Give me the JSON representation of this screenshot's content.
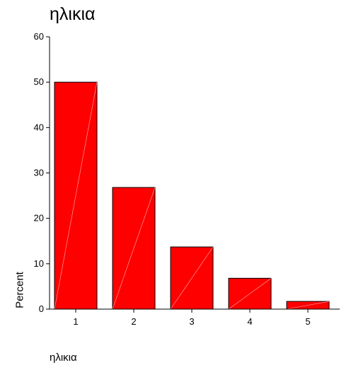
{
  "chart_data": {
    "type": "bar",
    "title": "ηλικια",
    "xlabel": "ηλικια",
    "ylabel": "Percent",
    "categories": [
      "1",
      "2",
      "3",
      "4",
      "5"
    ],
    "values": [
      50,
      26.8,
      13.7,
      6.8,
      1.7
    ],
    "ylim": [
      0,
      60
    ],
    "yticks": [
      0,
      10,
      20,
      30,
      40,
      50,
      60
    ],
    "grid": false,
    "bar_color": "#ff0000"
  }
}
